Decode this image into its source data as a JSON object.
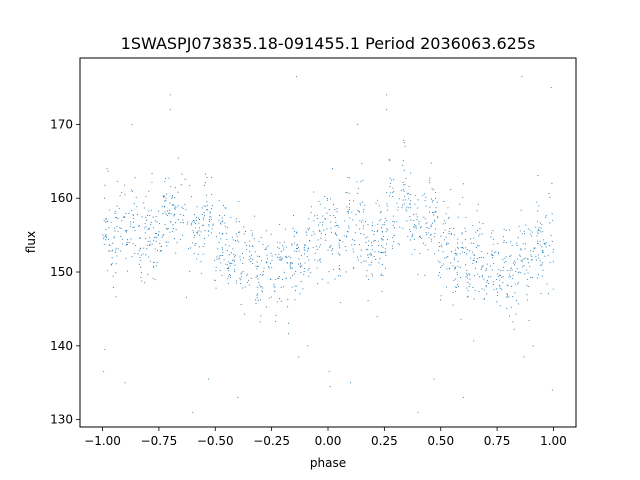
{
  "chart_data": {
    "type": "scatter",
    "title": "1SWASPJ073835.18-091455.1 Period 2036063.625s",
    "xlabel": "phase",
    "ylabel": "flux",
    "xlim": [
      -1.1,
      1.1
    ],
    "ylim": [
      129,
      179
    ],
    "xticks": [
      -1.0,
      -0.75,
      -0.5,
      -0.25,
      0.0,
      0.25,
      0.5,
      0.75,
      1.0
    ],
    "xtick_labels": [
      "−1.00",
      "−0.75",
      "−0.50",
      "−0.25",
      "0.00",
      "0.25",
      "0.50",
      "0.75",
      "1.00"
    ],
    "yticks": [
      130,
      140,
      150,
      160,
      170
    ],
    "ytick_labels": [
      "130",
      "140",
      "150",
      "160",
      "170"
    ],
    "grid": false,
    "legend": "none",
    "marker_color": "#1f77b4",
    "series": [
      {
        "phase_profile": {
          "x": [
            0.0,
            0.05,
            0.1,
            0.15,
            0.2,
            0.25,
            0.3,
            0.35,
            0.4,
            0.45,
            0.5,
            0.55,
            0.6,
            0.65,
            0.7,
            0.75,
            0.8,
            0.85,
            0.9,
            0.95,
            1.0
          ],
          "y": [
            154.5,
            155.0,
            156.5,
            156.0,
            153.5,
            156.0,
            160.0,
            159.0,
            155.0,
            157.5,
            155.0,
            152.5,
            152.5,
            151.5,
            150.5,
            150.5,
            150.0,
            151.5,
            153.0,
            155.0,
            154.5
          ]
        },
        "scatter_sd": 2.8,
        "point_count_per_cycle": 1500,
        "phase_range": [
          -1.0,
          1.0
        ],
        "outliers": [
          {
            "x": -0.995,
            "y": 136.5
          },
          {
            "x": -0.99,
            "y": 139.5
          },
          {
            "x": -0.98,
            "y": 164.0
          },
          {
            "x": -0.9,
            "y": 135.0
          },
          {
            "x": -0.87,
            "y": 170.0
          },
          {
            "x": -0.7,
            "y": 174.0
          },
          {
            "x": -0.7,
            "y": 172.0
          },
          {
            "x": -0.6,
            "y": 131.0
          },
          {
            "x": -0.53,
            "y": 135.5
          },
          {
            "x": -0.4,
            "y": 133.0
          },
          {
            "x": -0.14,
            "y": 176.5
          },
          {
            "x": -0.13,
            "y": 138.5
          },
          {
            "x": -0.09,
            "y": 140.0
          },
          {
            "x": 0.005,
            "y": 136.5
          },
          {
            "x": 0.01,
            "y": 134.5
          },
          {
            "x": 0.02,
            "y": 164.0
          },
          {
            "x": 0.1,
            "y": 135.0
          },
          {
            "x": 0.13,
            "y": 170.0
          },
          {
            "x": 0.26,
            "y": 174.0
          },
          {
            "x": 0.26,
            "y": 172.0
          },
          {
            "x": 0.4,
            "y": 131.0
          },
          {
            "x": 0.47,
            "y": 135.5
          },
          {
            "x": 0.6,
            "y": 133.0
          },
          {
            "x": 0.86,
            "y": 176.5
          },
          {
            "x": 0.87,
            "y": 138.5
          },
          {
            "x": 0.91,
            "y": 140.0
          },
          {
            "x": 0.995,
            "y": 134.0
          },
          {
            "x": 0.99,
            "y": 175.0
          }
        ]
      }
    ]
  }
}
